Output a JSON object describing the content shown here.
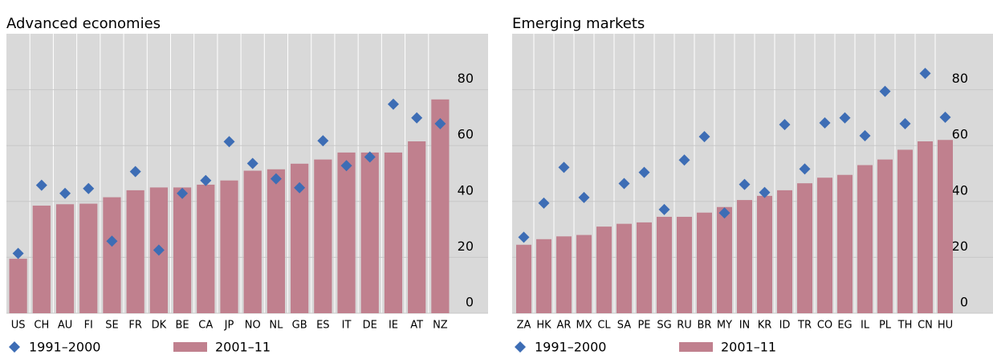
{
  "chart_data": [
    {
      "type": "bar",
      "title": "Advanced economies",
      "categories": [
        "US",
        "CH",
        "AU",
        "FI",
        "SE",
        "FR",
        "DK",
        "BE",
        "CA",
        "JP",
        "NO",
        "NL",
        "GB",
        "ES",
        "IT",
        "DE",
        "IE",
        "AT",
        "NZ"
      ],
      "series": [
        {
          "name": "1991–2000",
          "type": "scatter",
          "color": "#3d6db5",
          "values": [
            21.4,
            45.8,
            42.9,
            44.6,
            25.8,
            50.7,
            22.6,
            42.9,
            47.5,
            61.4,
            53.6,
            48.1,
            44.9,
            61.7,
            52.8,
            55.9,
            74.8,
            69.9,
            67.8
          ]
        },
        {
          "name": "2001–11",
          "type": "bar",
          "color": "#c0808e",
          "values": [
            19.5,
            38.5,
            39,
            39.2,
            41.5,
            44,
            45,
            45,
            46,
            47.5,
            51,
            51.5,
            53.5,
            55,
            57.5,
            57.5,
            57.5,
            61.5,
            76.5
          ]
        }
      ],
      "ylim": [
        0,
        100
      ],
      "yticks": [
        0,
        20,
        40,
        60,
        80
      ],
      "grid": true
    },
    {
      "type": "bar",
      "title": "Emerging markets",
      "categories": [
        "ZA",
        "HK",
        "AR",
        "MX",
        "CL",
        "SA",
        "PE",
        "SG",
        "RU",
        "BR",
        "MY",
        "IN",
        "KR",
        "ID",
        "TR",
        "CO",
        "EG",
        "IL",
        "PL",
        "TH",
        "CN",
        "HU"
      ],
      "series": [
        {
          "name": "1991–2000",
          "type": "scatter",
          "color": "#3d6db5",
          "values": [
            27.2,
            39.4,
            52.2,
            41.4,
            null,
            46.4,
            50.4,
            37.1,
            54.8,
            63.2,
            35.9,
            46.1,
            43.2,
            67.5,
            51.6,
            68.1,
            69.9,
            63.5,
            79.4,
            67.8,
            85.8,
            70.1
          ]
        },
        {
          "name": "2001–11",
          "type": "bar",
          "color": "#c0808e",
          "values": [
            24.5,
            26.5,
            27.5,
            28,
            31,
            32,
            32.5,
            34.5,
            34.5,
            36,
            38,
            40.5,
            42,
            44,
            46.5,
            48.5,
            49.5,
            53,
            55,
            58.5,
            61.5,
            62
          ]
        }
      ],
      "ylim": [
        0,
        100
      ],
      "yticks": [
        0,
        20,
        40,
        60,
        80
      ],
      "grid": true
    }
  ]
}
